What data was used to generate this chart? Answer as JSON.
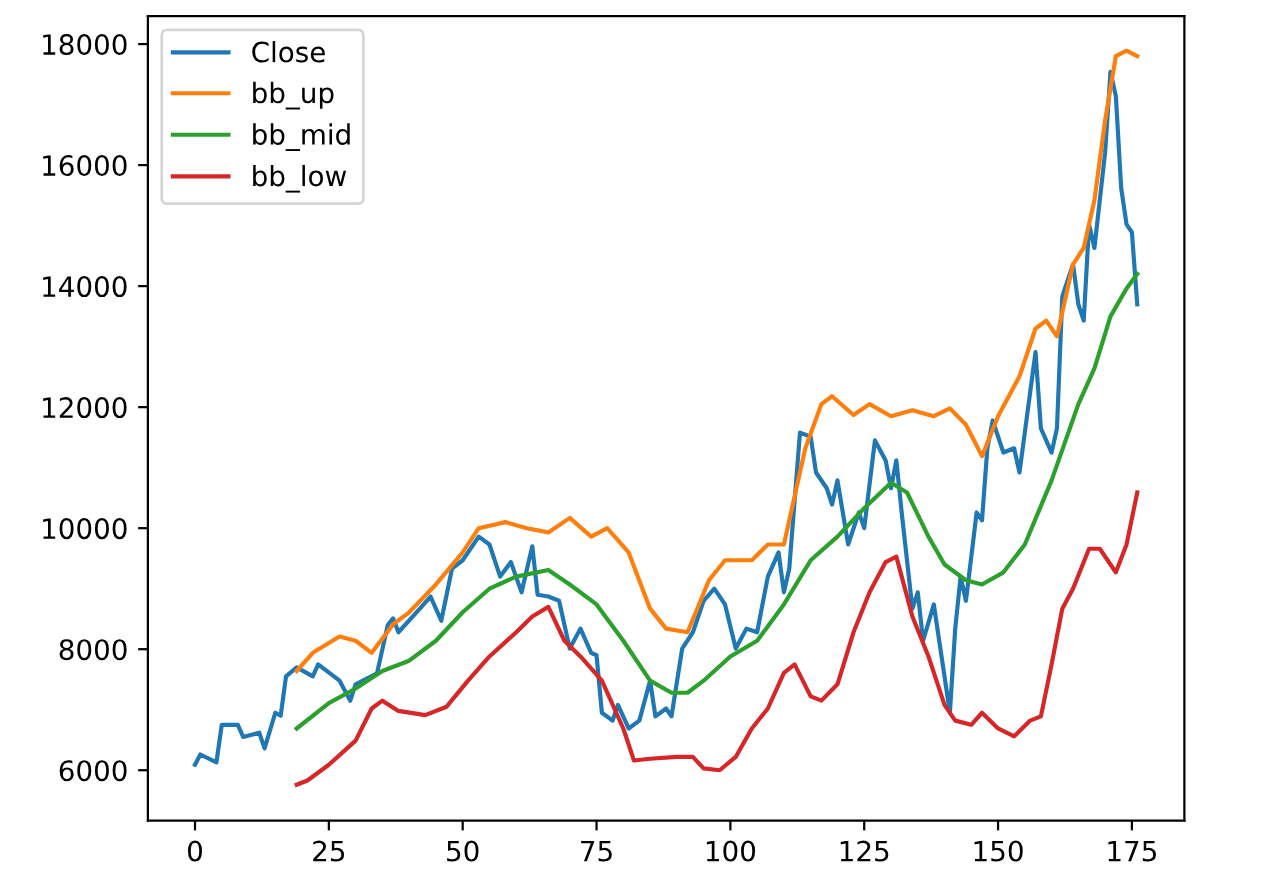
{
  "chart_data": {
    "type": "line",
    "xlim": [
      -8.8,
      184.8
    ],
    "ylim": [
      5167,
      18463
    ],
    "xticks": [
      0,
      25,
      50,
      75,
      100,
      125,
      150,
      175
    ],
    "yticks": [
      6000,
      8000,
      10000,
      12000,
      14000,
      16000,
      18000
    ],
    "grid": false,
    "legend": "top left",
    "marker": "none",
    "line_style": "solid",
    "series": [
      {
        "name": "Close",
        "color": "#1f77b4",
        "x": [
          0,
          1,
          4,
          5,
          8,
          9,
          12,
          13,
          15,
          16,
          17,
          19,
          22,
          23,
          27,
          29,
          30,
          34,
          36,
          37,
          38,
          42,
          44,
          46,
          48,
          50,
          53,
          55,
          57,
          59,
          61,
          63,
          64,
          66,
          68,
          70,
          72,
          74,
          75,
          76,
          78,
          79,
          81,
          83,
          85,
          86,
          88,
          89,
          91,
          93,
          95,
          97,
          99,
          101,
          103,
          105,
          107,
          109,
          110,
          111,
          113,
          115,
          116,
          118,
          119,
          120,
          122,
          124,
          125,
          127,
          129,
          130,
          131,
          132,
          134,
          135,
          136,
          138,
          140,
          141,
          142,
          143,
          144,
          146,
          147,
          148,
          149,
          151,
          153,
          154,
          157,
          158,
          160,
          161,
          162,
          164,
          165,
          166,
          167,
          168,
          170,
          171,
          172,
          173,
          174,
          175,
          176
        ],
        "values": [
          6090,
          6260,
          6130,
          6750,
          6750,
          6550,
          6620,
          6360,
          6950,
          6900,
          7550,
          7700,
          7550,
          7750,
          7480,
          7150,
          7420,
          7600,
          8400,
          8510,
          8280,
          8670,
          8870,
          8470,
          9330,
          9470,
          9860,
          9730,
          9200,
          9440,
          8940,
          9700,
          8900,
          8870,
          8800,
          8010,
          8340,
          7940,
          7900,
          6950,
          6820,
          7080,
          6690,
          6820,
          7480,
          6890,
          7020,
          6890,
          8010,
          8280,
          8800,
          9000,
          8740,
          8010,
          8340,
          8280,
          9200,
          9600,
          8940,
          9330,
          11580,
          11510,
          10920,
          10660,
          10390,
          10790,
          9730,
          10260,
          10000,
          11450,
          11120,
          10660,
          11120,
          10260,
          8670,
          8940,
          8140,
          8740,
          7550,
          6950,
          8340,
          9200,
          8800,
          10260,
          10130,
          11320,
          11780,
          11250,
          11320,
          10920,
          12910,
          11650,
          11250,
          11650,
          13830,
          14360,
          13700,
          13430,
          15020,
          14630,
          16210,
          17540,
          17140,
          15620,
          15020,
          14890,
          13700
        ]
      },
      {
        "name": "bb_up",
        "color": "#ff7f0e",
        "x": [
          19,
          22,
          27,
          30,
          33,
          37,
          40,
          45,
          50,
          53,
          58,
          62,
          66,
          70,
          74,
          77,
          81,
          85,
          88,
          92,
          96,
          99,
          104,
          107,
          110,
          114,
          117,
          119,
          123,
          126,
          130,
          134,
          138,
          141,
          144,
          147,
          150,
          154,
          157,
          159,
          161,
          164,
          166,
          168,
          170,
          172,
          174,
          176
        ],
        "values": [
          7640,
          7940,
          8210,
          8140,
          7940,
          8410,
          8610,
          9070,
          9600,
          10000,
          10100,
          10000,
          9930,
          10170,
          9860,
          10000,
          9600,
          8670,
          8340,
          8280,
          9140,
          9470,
          9470,
          9730,
          9730,
          11320,
          12050,
          12180,
          11870,
          12050,
          11850,
          11950,
          11850,
          11980,
          11710,
          11190,
          11850,
          12510,
          13300,
          13430,
          13170,
          14360,
          14630,
          15420,
          16740,
          17800,
          17890,
          17800
        ]
      },
      {
        "name": "bb_mid",
        "color": "#2ca02c",
        "x": [
          19,
          25,
          30,
          35,
          40,
          45,
          50,
          55,
          60,
          66,
          70,
          75,
          80,
          85,
          89,
          92,
          95,
          100,
          105,
          110,
          115,
          120,
          125,
          130,
          133,
          137,
          140,
          144,
          147,
          151,
          155,
          160,
          165,
          168,
          171,
          174,
          176
        ],
        "values": [
          6690,
          7110,
          7350,
          7640,
          7810,
          8140,
          8610,
          9000,
          9200,
          9310,
          9070,
          8740,
          8140,
          7480,
          7280,
          7280,
          7480,
          7880,
          8140,
          8740,
          9470,
          9860,
          10330,
          10750,
          10590,
          9860,
          9400,
          9140,
          9070,
          9270,
          9730,
          10790,
          12050,
          12640,
          13500,
          13960,
          14200
        ]
      },
      {
        "name": "bb_low",
        "color": "#d62728",
        "x": [
          19,
          21,
          25,
          30,
          33,
          35,
          38,
          43,
          47,
          51,
          55,
          60,
          63,
          66,
          69,
          72,
          76,
          80,
          82,
          85,
          90,
          93,
          95,
          98,
          101,
          104,
          107,
          110,
          112,
          115,
          117,
          120,
          123,
          126,
          129,
          131,
          134,
          137,
          140,
          142,
          145,
          147,
          150,
          153,
          156,
          158,
          160,
          162,
          164,
          167,
          169,
          172,
          174,
          176
        ],
        "values": [
          5760,
          5830,
          6090,
          6490,
          7020,
          7150,
          6980,
          6910,
          7050,
          7480,
          7880,
          8280,
          8540,
          8700,
          8140,
          7880,
          7480,
          6690,
          6160,
          6190,
          6220,
          6220,
          6030,
          6000,
          6220,
          6690,
          7020,
          7610,
          7750,
          7220,
          7150,
          7420,
          8280,
          8940,
          9440,
          9530,
          8540,
          7880,
          7080,
          6820,
          6750,
          6950,
          6690,
          6560,
          6820,
          6890,
          7750,
          8670,
          9000,
          9660,
          9660,
          9270,
          9730,
          10590
        ]
      }
    ]
  }
}
